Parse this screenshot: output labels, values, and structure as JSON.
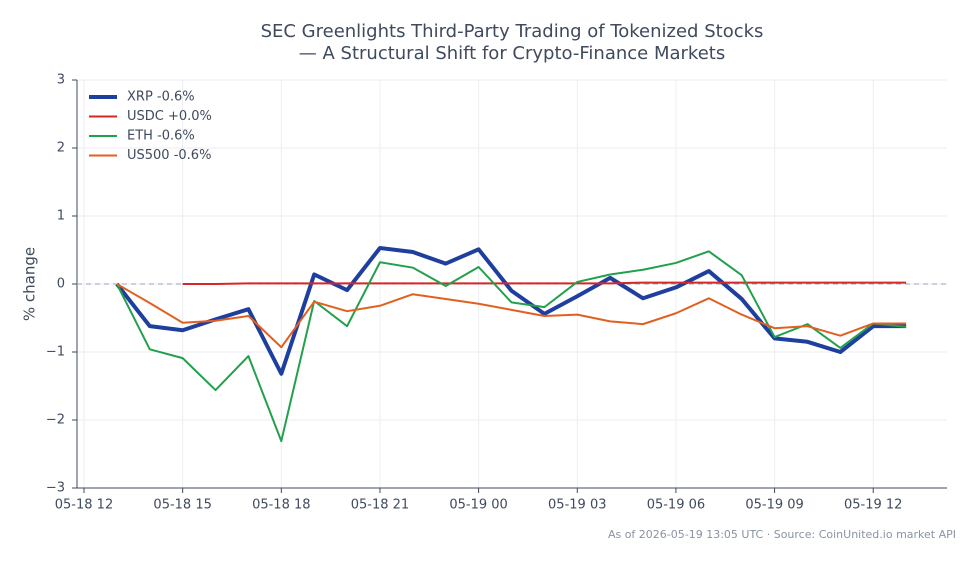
{
  "chart_data": {
    "type": "line",
    "title": "SEC Greenlights Third-Party Trading of Tokenized Stocks",
    "subtitle": "— A Structural Shift for Crypto-Finance Markets",
    "y_label": "% change",
    "footnote": "As of 2026-05-19 13:05 UTC · Source: CoinUnited.io market API",
    "x": [
      "05-18 13",
      "05-18 14",
      "05-18 15",
      "05-18 16",
      "05-18 17",
      "05-18 18",
      "05-18 19",
      "05-18 20",
      "05-18 21",
      "05-18 22",
      "05-18 23",
      "05-19 00",
      "05-19 01",
      "05-19 02",
      "05-19 03",
      "05-19 04",
      "05-19 05",
      "05-19 06",
      "05-19 07",
      "05-19 08",
      "05-19 09",
      "05-19 10",
      "05-19 11",
      "05-19 12",
      "05-19 13"
    ],
    "series": [
      {
        "name": "XRP -0.6%",
        "color": "#1f3f9f",
        "width": 4,
        "values": [
          0,
          -0.62,
          -0.68,
          -0.52,
          -0.37,
          -1.32,
          0.14,
          -0.09,
          0.53,
          0.47,
          0.3,
          0.51,
          -0.1,
          -0.44,
          -0.18,
          0.09,
          -0.21,
          -0.05,
          0.19,
          -0.22,
          -0.8,
          -0.85,
          -1.0,
          -0.62,
          -0.62
        ]
      },
      {
        "name": "USDC +0.0%",
        "color": "#d62728",
        "width": 2,
        "values": [
          null,
          null,
          0,
          0,
          0.01,
          0.01,
          0.01,
          0.01,
          0.01,
          0.01,
          0.01,
          0.01,
          0.01,
          0.01,
          0.01,
          0.01,
          0.02,
          0.02,
          0.02,
          0.02,
          0.02,
          0.02,
          0.02,
          0.02,
          0.02
        ]
      },
      {
        "name": "ETH -0.6%",
        "color": "#22a04b",
        "width": 2,
        "values": [
          0,
          -0.96,
          -1.09,
          -1.56,
          -1.06,
          -2.31,
          -0.25,
          -0.62,
          0.32,
          0.24,
          -0.03,
          0.25,
          -0.27,
          -0.34,
          0.03,
          0.14,
          0.21,
          0.31,
          0.48,
          0.13,
          -0.78,
          -0.59,
          -0.94,
          -0.58,
          -0.63
        ]
      },
      {
        "name": "US500 -0.6%",
        "color": "#e2601f",
        "width": 2,
        "values": [
          0,
          -0.28,
          -0.57,
          -0.54,
          -0.47,
          -0.93,
          -0.26,
          -0.4,
          -0.32,
          -0.15,
          -0.22,
          -0.29,
          -0.38,
          -0.47,
          -0.45,
          -0.55,
          -0.59,
          -0.43,
          -0.21,
          -0.45,
          -0.65,
          -0.62,
          -0.76,
          -0.58,
          -0.58
        ]
      }
    ],
    "xlim": [
      "05-18 12",
      "05-19 14"
    ],
    "xticks": [
      "05-18 12",
      "05-18 15",
      "05-18 18",
      "05-18 21",
      "05-19 00",
      "05-19 03",
      "05-19 06",
      "05-19 09",
      "05-19 12"
    ],
    "ylim": [
      -3,
      3
    ],
    "yticks": [
      {
        "value": -3,
        "label": "−3"
      },
      {
        "value": -2,
        "label": "−2"
      },
      {
        "value": -1,
        "label": "−1"
      },
      0,
      1,
      2,
      3
    ],
    "reference_line": 0,
    "grid": true,
    "legend": "upper left"
  }
}
